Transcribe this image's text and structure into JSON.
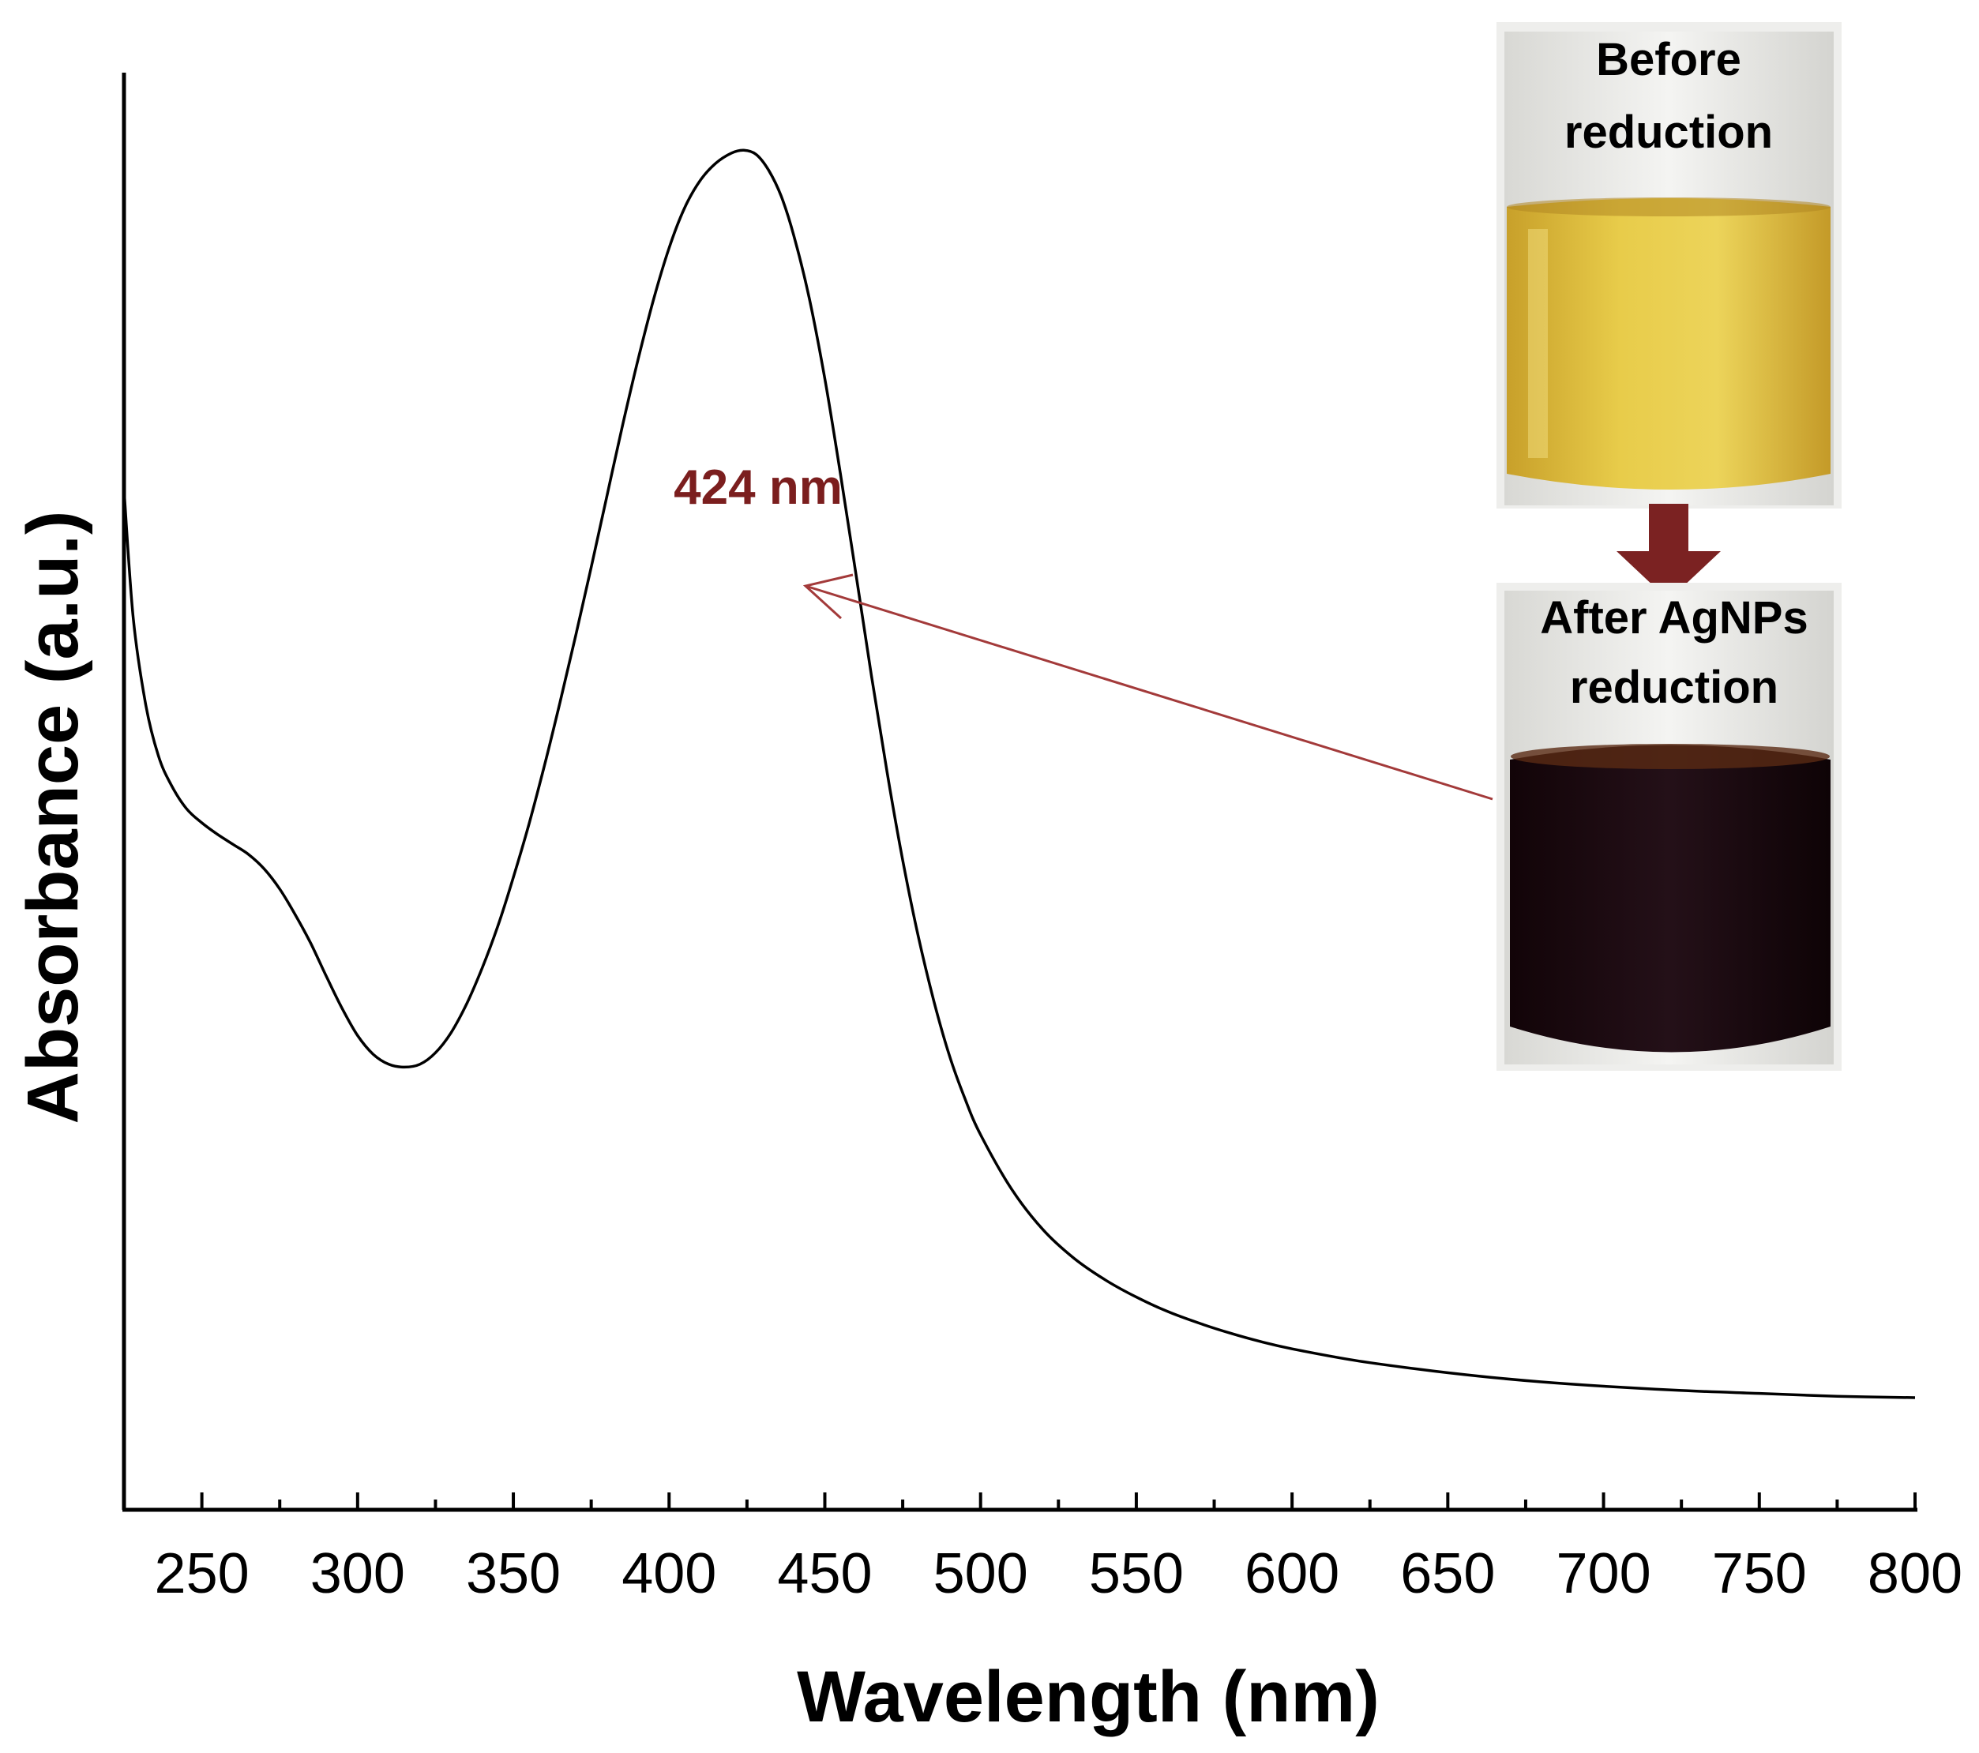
{
  "chart_data": {
    "type": "line",
    "xlabel": "Wavelength (nm)",
    "ylabel": "Absorbance (a.u.)",
    "xlim": [
      225,
      800
    ],
    "ylim": [
      0,
      1
    ],
    "x_ticks": [
      "250",
      "300",
      "350",
      "400",
      "450",
      "500",
      "550",
      "600",
      "650",
      "700",
      "750",
      "800"
    ],
    "grid": false,
    "series": [
      {
        "x": [
          225,
          228,
          232,
          236,
          240,
          245,
          250,
          255,
          260,
          265,
          270,
          275,
          280,
          285,
          290,
          295,
          300,
          305,
          310,
          315,
          320,
          325,
          330,
          335,
          340,
          345,
          350,
          355,
          360,
          365,
          370,
          375,
          380,
          385,
          390,
          395,
          400,
          405,
          410,
          415,
          420,
          424,
          428,
          432,
          436,
          440,
          445,
          450,
          455,
          460,
          465,
          470,
          475,
          480,
          485,
          490,
          495,
          500,
          510,
          520,
          530,
          540,
          550,
          560,
          570,
          580,
          590,
          600,
          620,
          640,
          660,
          680,
          700,
          725,
          750,
          775,
          800
        ],
        "y": [
          0.71,
          0.62,
          0.56,
          0.525,
          0.505,
          0.488,
          0.478,
          0.47,
          0.463,
          0.456,
          0.446,
          0.432,
          0.414,
          0.394,
          0.371,
          0.349,
          0.33,
          0.317,
          0.31,
          0.308,
          0.31,
          0.318,
          0.332,
          0.352,
          0.377,
          0.406,
          0.44,
          0.477,
          0.518,
          0.562,
          0.608,
          0.656,
          0.705,
          0.754,
          0.8,
          0.842,
          0.878,
          0.906,
          0.925,
          0.937,
          0.944,
          0.946,
          0.943,
          0.932,
          0.914,
          0.887,
          0.843,
          0.787,
          0.721,
          0.651,
          0.58,
          0.513,
          0.452,
          0.399,
          0.354,
          0.316,
          0.286,
          0.261,
          0.223,
          0.195,
          0.175,
          0.16,
          0.148,
          0.138,
          0.13,
          0.123,
          0.117,
          0.112,
          0.104,
          0.098,
          0.093,
          0.089,
          0.086,
          0.083,
          0.081,
          0.079,
          0.078
        ]
      }
    ],
    "annotations": [
      {
        "text": "424 nm",
        "x": 424,
        "color": "#7b1e1e"
      }
    ],
    "colors": {
      "curve": "#000000",
      "annotation": "#7b1e1e",
      "arrow": "#a33a3a",
      "vial_arrow": "#7b2222"
    }
  },
  "inset_photos": {
    "before": {
      "lines": [
        "Before",
        "reduction"
      ],
      "liquid_color": "#e2c23a"
    },
    "after": {
      "lines": [
        "After AgNPs",
        "reduction"
      ],
      "liquid_color": "#1f0a12"
    }
  }
}
